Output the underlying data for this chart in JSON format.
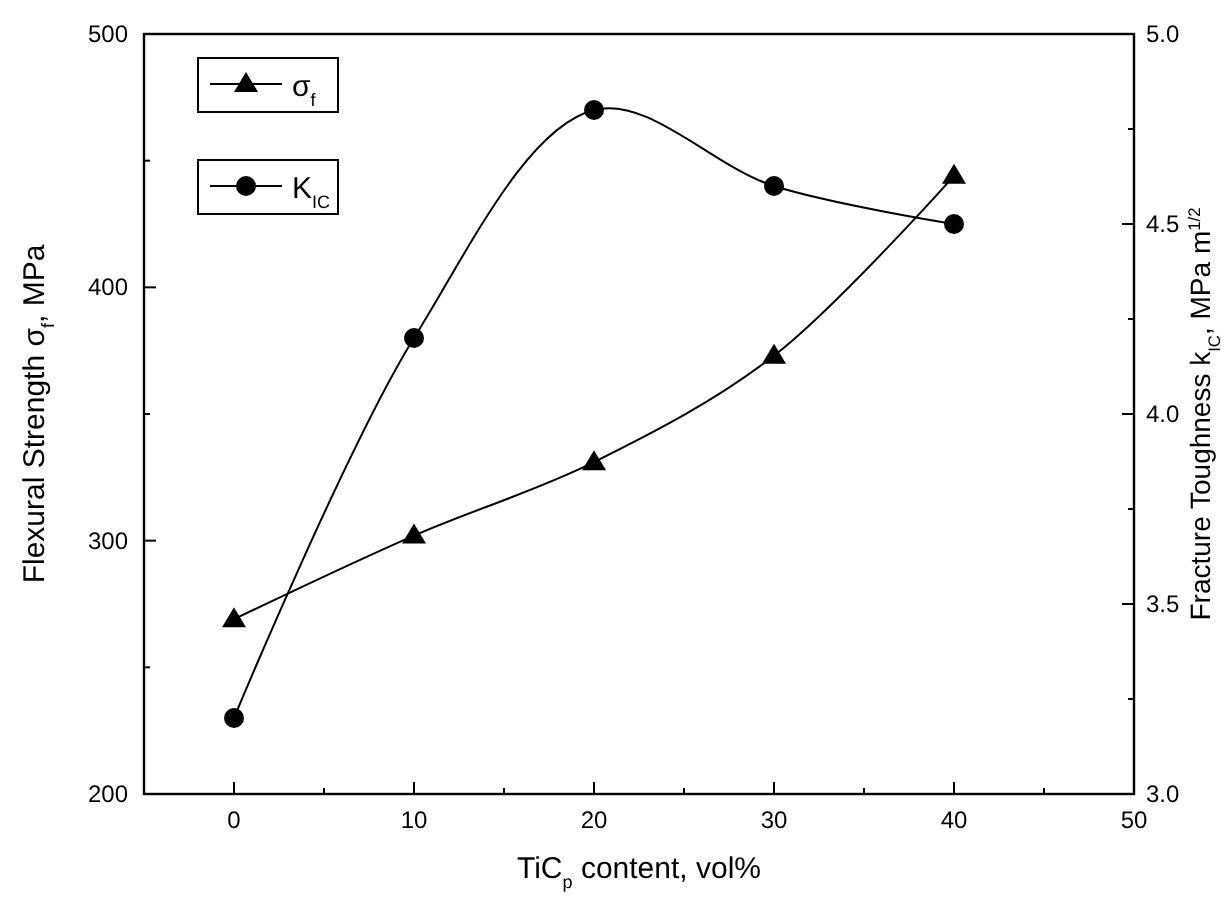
{
  "chart_data": {
    "type": "line",
    "xlabel": "TiC$_{p}$ content, vol%",
    "ylabel": "Flexural Strength σ$_{f}$, MPa",
    "y2label": "Fracture Toughness k$_{IC}$, MPa m$^{1/2}$",
    "x": [
      0,
      10,
      20,
      30,
      40
    ],
    "series": [
      {
        "name": "σ$_{f}$",
        "color": "#000000",
        "marker": "triangle",
        "values": [
          269,
          302,
          331,
          373,
          444
        ]
      },
      {
        "name": "K$_{IC}$",
        "color": "#000000",
        "marker": "circle",
        "axis": "y2",
        "values": [
          3.2,
          4.2,
          4.8,
          4.6,
          4.5
        ]
      }
    ],
    "xlim": [
      -5,
      50
    ],
    "xticks": [
      0,
      {
        "value": 5,
        "label": null
      },
      10,
      {
        "value": 15,
        "label": null
      },
      20,
      {
        "value": 25,
        "label": null
      },
      30,
      {
        "value": 35,
        "label": null
      },
      40,
      {
        "value": 45,
        "label": null
      },
      50
    ],
    "ylim": [
      200,
      500
    ],
    "yticks": [
      200,
      {
        "value": 250,
        "label": null
      },
      300,
      {
        "value": 350,
        "label": null
      },
      400,
      {
        "value": 450,
        "label": null
      },
      500
    ],
    "y2lim": [
      3.0,
      5.0
    ],
    "y2ticks": [
      {
        "value": 3,
        "label": "3.0"
      },
      {
        "value": 3.25,
        "label": null
      },
      3.5,
      {
        "value": 3.75,
        "label": null
      },
      {
        "value": 4,
        "label": "4.0"
      },
      {
        "value": 4.25,
        "label": null
      },
      4.5,
      {
        "value": 4.75,
        "label": null
      },
      {
        "value": 5,
        "label": "5.0"
      }
    ],
    "grid": false,
    "legend": "top left",
    "line_style": "solid"
  }
}
